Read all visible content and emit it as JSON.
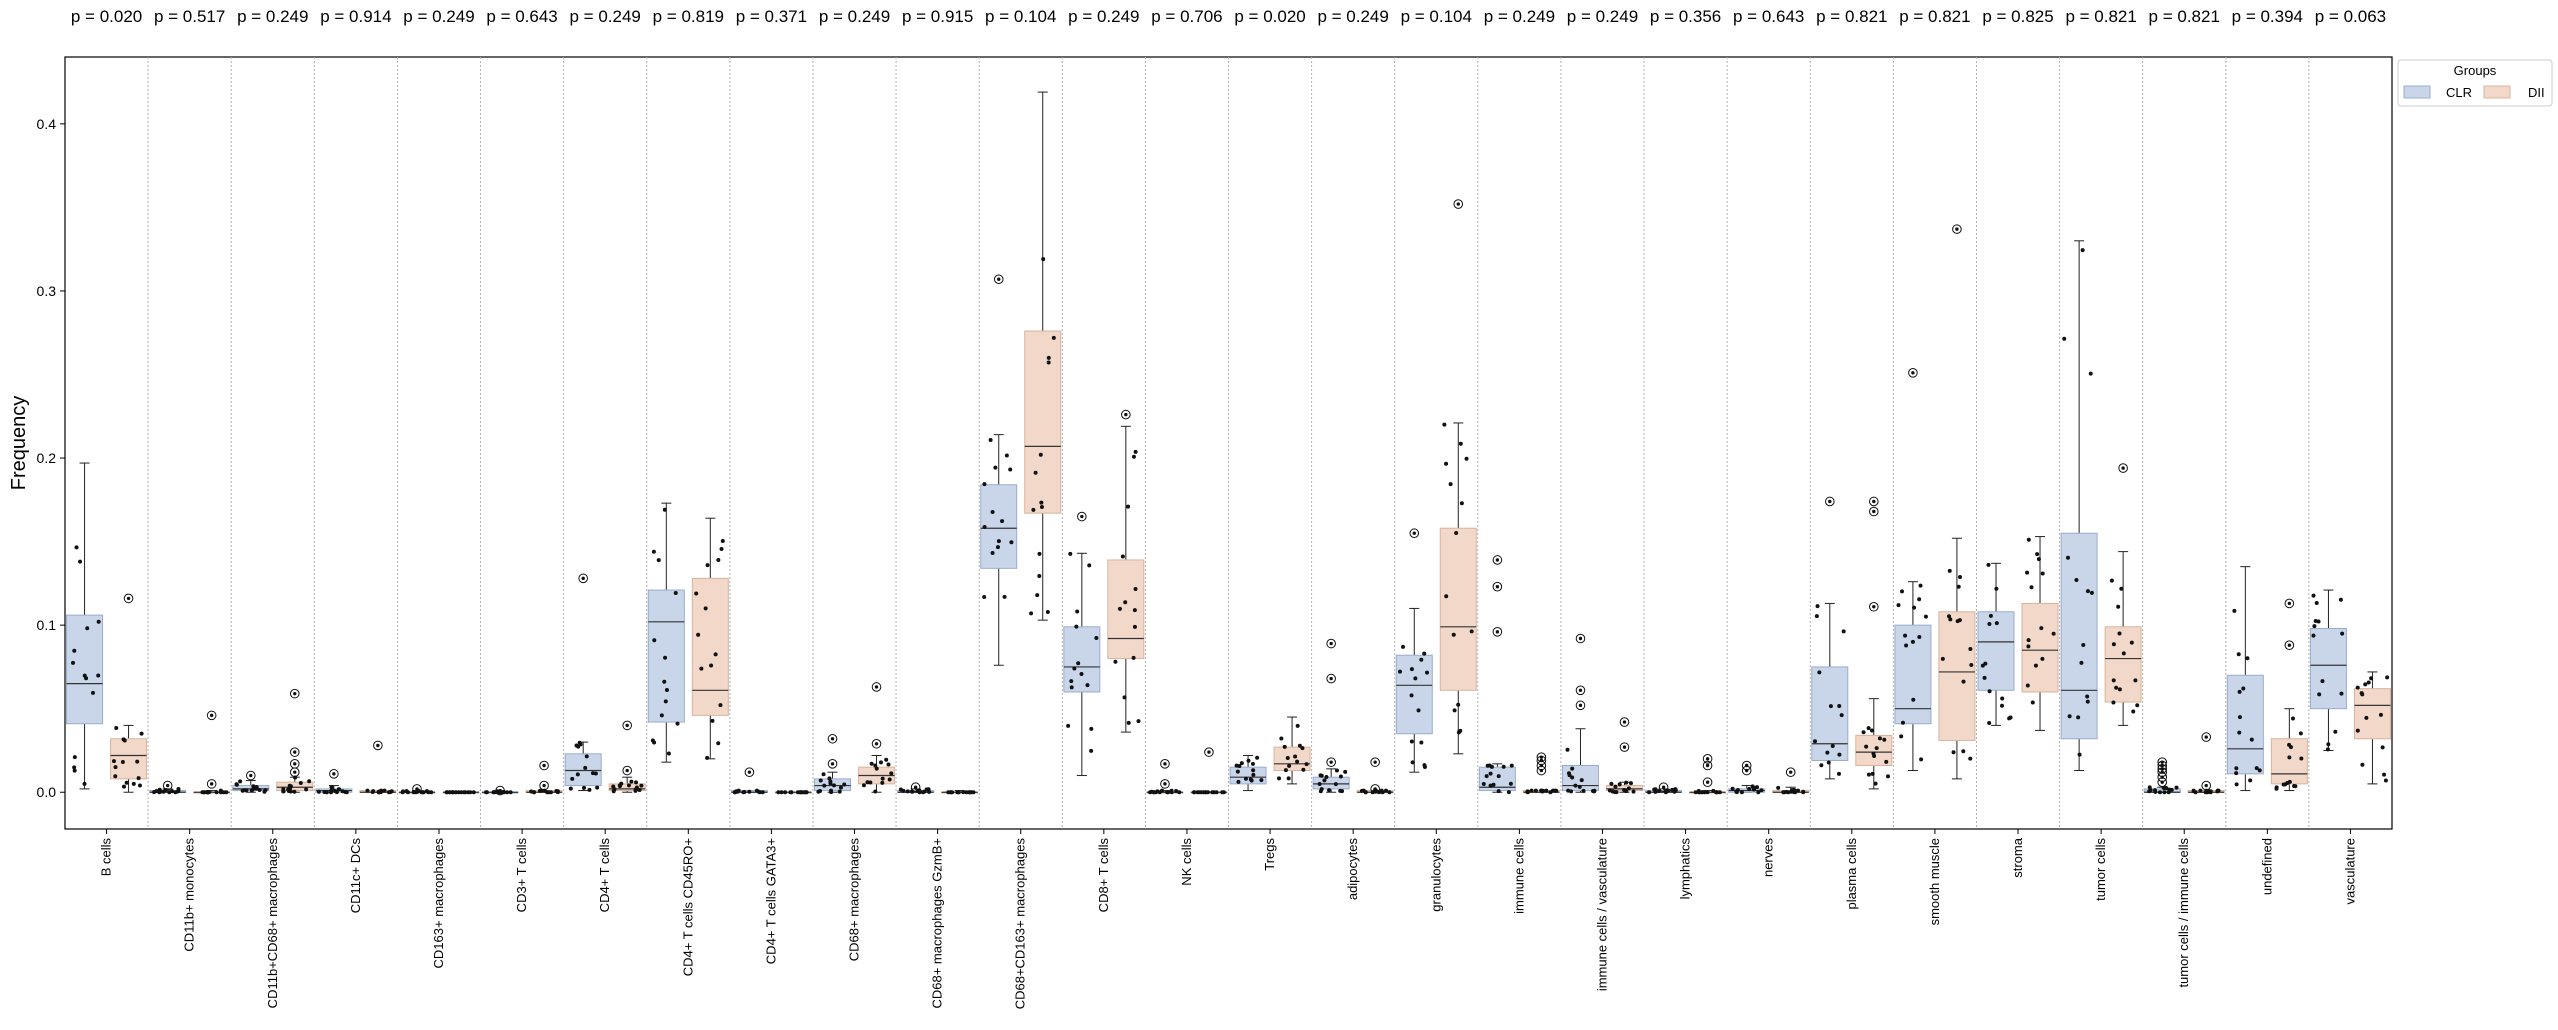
{
  "chart_data": {
    "type": "box",
    "ylabel": "Frequency",
    "ylim": [
      -0.022,
      0.44
    ],
    "yticks": [
      0.0,
      0.1,
      0.2,
      0.3,
      0.4
    ],
    "ytick_labels": [
      "0.0",
      "0.1",
      "0.2",
      "0.3",
      "0.4"
    ],
    "grid": "vertical dotted separators between categories",
    "legend": {
      "title": "Groups",
      "position": "top-right",
      "entries": [
        "CLR",
        "DII"
      ]
    },
    "colors": {
      "CLR": "#c9d6ea",
      "DII": "#f2d8c9",
      "CLR_edge": "#9aaccd",
      "DII_edge": "#d9b39e"
    },
    "categories": [
      "B cells",
      "CD11b+ monocytes",
      "CD11b+CD68+ macrophages",
      "CD11c+ DCs",
      "CD163+ macrophages",
      "CD3+ T cells",
      "CD4+ T cells",
      "CD4+ T cells CD45RO+",
      "CD4+ T cells GATA3+",
      "CD68+ macrophages",
      "CD68+ macrophages GzmB+",
      "CD68+CD163+ macrophages",
      "CD8+ T cells",
      "NK cells",
      "Tregs",
      "adipocytes",
      "granulocytes",
      "immune cells",
      "immune cells / vasculature",
      "lymphatics",
      "nerves",
      "plasma cells",
      "smooth muscle",
      "stroma",
      "tumor cells",
      "tumor cells / immune cells",
      "undefined",
      "vasculature"
    ],
    "p_values": [
      "p = 0.020",
      "p = 0.517",
      "p = 0.249",
      "p = 0.914",
      "p = 0.249",
      "p = 0.643",
      "p = 0.249",
      "p = 0.819",
      "p = 0.371",
      "p = 0.249",
      "p = 0.915",
      "p = 0.104",
      "p = 0.249",
      "p = 0.706",
      "p = 0.020",
      "p = 0.249",
      "p = 0.104",
      "p = 0.249",
      "p = 0.249",
      "p = 0.356",
      "p = 0.643",
      "p = 0.821",
      "p = 0.821",
      "p = 0.825",
      "p = 0.821",
      "p = 0.821",
      "p = 0.394",
      "p = 0.063"
    ],
    "series": [
      {
        "name": "CLR",
        "boxes": [
          {
            "q1": 0.041,
            "med": 0.065,
            "q3": 0.106,
            "wlo": 0.002,
            "whi": 0.197,
            "out": []
          },
          {
            "q1": 0.0,
            "med": 0.0,
            "q3": 0.001,
            "wlo": 0.0,
            "whi": 0.002,
            "out": [
              0.004
            ]
          },
          {
            "q1": 0.001,
            "med": 0.002,
            "q3": 0.004,
            "wlo": 0.0,
            "whi": 0.007,
            "out": [
              0.01
            ]
          },
          {
            "q1": 0.0,
            "med": 0.001,
            "q3": 0.002,
            "wlo": 0.0,
            "whi": 0.004,
            "out": [
              0.011
            ]
          },
          {
            "q1": 0.0,
            "med": 0.0,
            "q3": 0.0,
            "wlo": 0.0,
            "whi": 0.001,
            "out": [
              0.002
            ]
          },
          {
            "q1": 0.0,
            "med": 0.0,
            "q3": 0.0,
            "wlo": 0.0,
            "whi": 0.001,
            "out": [
              0.001
            ]
          },
          {
            "q1": 0.004,
            "med": 0.013,
            "q3": 0.023,
            "wlo": 0.001,
            "whi": 0.03,
            "out": [
              0.128
            ]
          },
          {
            "q1": 0.042,
            "med": 0.102,
            "q3": 0.121,
            "wlo": 0.018,
            "whi": 0.173,
            "out": []
          },
          {
            "q1": 0.0,
            "med": 0.0,
            "q3": 0.001,
            "wlo": 0.0,
            "whi": 0.001,
            "out": [
              0.012
            ]
          },
          {
            "q1": 0.001,
            "med": 0.004,
            "q3": 0.008,
            "wlo": 0.0,
            "whi": 0.012,
            "out": [
              0.017,
              0.032
            ]
          },
          {
            "q1": 0.0,
            "med": 0.0,
            "q3": 0.001,
            "wlo": 0.0,
            "whi": 0.002,
            "out": [
              0.003
            ]
          },
          {
            "q1": 0.134,
            "med": 0.158,
            "q3": 0.184,
            "wlo": 0.076,
            "whi": 0.214,
            "out": [
              0.307
            ]
          },
          {
            "q1": 0.06,
            "med": 0.075,
            "q3": 0.099,
            "wlo": 0.01,
            "whi": 0.143,
            "out": [
              0.165
            ]
          },
          {
            "q1": 0.0,
            "med": 0.0,
            "q3": 0.0,
            "wlo": 0.0,
            "whi": 0.001,
            "out": [
              0.005,
              0.017
            ]
          },
          {
            "q1": 0.005,
            "med": 0.009,
            "q3": 0.015,
            "wlo": 0.001,
            "whi": 0.022,
            "out": []
          },
          {
            "q1": 0.002,
            "med": 0.005,
            "q3": 0.009,
            "wlo": 0.0,
            "whi": 0.014,
            "out": [
              0.018,
              0.068,
              0.089
            ]
          },
          {
            "q1": 0.035,
            "med": 0.064,
            "q3": 0.082,
            "wlo": 0.012,
            "whi": 0.11,
            "out": [
              0.155
            ]
          },
          {
            "q1": 0.001,
            "med": 0.003,
            "q3": 0.015,
            "wlo": 0.0,
            "whi": 0.017,
            "out": [
              0.096,
              0.123,
              0.139
            ]
          },
          {
            "q1": 0.001,
            "med": 0.004,
            "q3": 0.016,
            "wlo": 0.0,
            "whi": 0.038,
            "out": [
              0.052,
              0.061,
              0.092
            ]
          },
          {
            "q1": 0.0,
            "med": 0.0,
            "q3": 0.001,
            "wlo": 0.0,
            "whi": 0.002,
            "out": [
              0.003
            ]
          },
          {
            "q1": 0.0,
            "med": 0.001,
            "q3": 0.002,
            "wlo": 0.0,
            "whi": 0.004,
            "out": [
              0.013,
              0.016
            ]
          },
          {
            "q1": 0.019,
            "med": 0.029,
            "q3": 0.075,
            "wlo": 0.008,
            "whi": 0.113,
            "out": [
              0.174
            ]
          },
          {
            "q1": 0.041,
            "med": 0.05,
            "q3": 0.1,
            "wlo": 0.013,
            "whi": 0.126,
            "out": [
              0.251
            ]
          },
          {
            "q1": 0.061,
            "med": 0.09,
            "q3": 0.108,
            "wlo": 0.04,
            "whi": 0.137,
            "out": []
          },
          {
            "q1": 0.032,
            "med": 0.061,
            "q3": 0.155,
            "wlo": 0.013,
            "whi": 0.33,
            "out": []
          },
          {
            "q1": 0.0,
            "med": 0.0,
            "q3": 0.002,
            "wlo": 0.0,
            "whi": 0.003,
            "out": [
              0.006,
              0.009,
              0.012,
              0.014,
              0.016,
              0.018
            ]
          },
          {
            "q1": 0.011,
            "med": 0.026,
            "q3": 0.07,
            "wlo": 0.001,
            "whi": 0.135,
            "out": []
          },
          {
            "q1": 0.05,
            "med": 0.076,
            "q3": 0.098,
            "wlo": 0.025,
            "whi": 0.121,
            "out": []
          }
        ]
      },
      {
        "name": "DII",
        "boxes": [
          {
            "q1": 0.008,
            "med": 0.022,
            "q3": 0.032,
            "wlo": 0.0,
            "whi": 0.04,
            "out": [
              0.116
            ]
          },
          {
            "q1": 0.0,
            "med": 0.0,
            "q3": 0.0,
            "wlo": 0.0,
            "whi": 0.001,
            "out": [
              0.005,
              0.046
            ]
          },
          {
            "q1": 0.001,
            "med": 0.003,
            "q3": 0.006,
            "wlo": 0.0,
            "whi": 0.009,
            "out": [
              0.012,
              0.017,
              0.024,
              0.059
            ]
          },
          {
            "q1": 0.0,
            "med": 0.0,
            "q3": 0.001,
            "wlo": 0.0,
            "whi": 0.001,
            "out": [
              0.028
            ]
          },
          {
            "q1": 0.0,
            "med": 0.0,
            "q3": 0.0,
            "wlo": 0.0,
            "whi": 0.0,
            "out": []
          },
          {
            "q1": 0.0,
            "med": 0.0,
            "q3": 0.001,
            "wlo": 0.0,
            "whi": 0.001,
            "out": [
              0.004,
              0.016
            ]
          },
          {
            "q1": 0.001,
            "med": 0.002,
            "q3": 0.005,
            "wlo": 0.0,
            "whi": 0.009,
            "out": [
              0.013,
              0.04
            ]
          },
          {
            "q1": 0.046,
            "med": 0.061,
            "q3": 0.128,
            "wlo": 0.02,
            "whi": 0.164,
            "out": []
          },
          {
            "q1": 0.0,
            "med": 0.0,
            "q3": 0.0,
            "wlo": 0.0,
            "whi": 0.0,
            "out": []
          },
          {
            "q1": 0.005,
            "med": 0.01,
            "q3": 0.015,
            "wlo": 0.0,
            "whi": 0.022,
            "out": [
              0.029,
              0.063
            ]
          },
          {
            "q1": 0.0,
            "med": 0.0,
            "q3": 0.0,
            "wlo": 0.0,
            "whi": 0.001,
            "out": []
          },
          {
            "q1": 0.167,
            "med": 0.207,
            "q3": 0.276,
            "wlo": 0.103,
            "whi": 0.419,
            "out": []
          },
          {
            "q1": 0.08,
            "med": 0.092,
            "q3": 0.139,
            "wlo": 0.036,
            "whi": 0.219,
            "out": [
              0.226
            ]
          },
          {
            "q1": 0.0,
            "med": 0.0,
            "q3": 0.0,
            "wlo": 0.0,
            "whi": 0.0,
            "out": [
              0.024
            ]
          },
          {
            "q1": 0.013,
            "med": 0.017,
            "q3": 0.027,
            "wlo": 0.005,
            "whi": 0.045,
            "out": []
          },
          {
            "q1": 0.0,
            "med": 0.0,
            "q3": 0.001,
            "wlo": 0.0,
            "whi": 0.001,
            "out": [
              0.002,
              0.018
            ]
          },
          {
            "q1": 0.061,
            "med": 0.099,
            "q3": 0.158,
            "wlo": 0.023,
            "whi": 0.221,
            "out": [
              0.352
            ]
          },
          {
            "q1": 0.0,
            "med": 0.0,
            "q3": 0.001,
            "wlo": 0.0,
            "whi": 0.001,
            "out": [
              0.013,
              0.016,
              0.019,
              0.021
            ]
          },
          {
            "q1": 0.001,
            "med": 0.002,
            "q3": 0.004,
            "wlo": 0.0,
            "whi": 0.006,
            "out": [
              0.027,
              0.042
            ]
          },
          {
            "q1": 0.0,
            "med": 0.0,
            "q3": 0.0,
            "wlo": 0.0,
            "whi": 0.001,
            "out": [
              0.006,
              0.016,
              0.02
            ]
          },
          {
            "q1": 0.0,
            "med": 0.0,
            "q3": 0.001,
            "wlo": 0.0,
            "whi": 0.003,
            "out": [
              0.012
            ]
          },
          {
            "q1": 0.016,
            "med": 0.024,
            "q3": 0.034,
            "wlo": 0.002,
            "whi": 0.056,
            "out": [
              0.111,
              0.168,
              0.174
            ]
          },
          {
            "q1": 0.031,
            "med": 0.072,
            "q3": 0.108,
            "wlo": 0.008,
            "whi": 0.152,
            "out": [
              0.337
            ]
          },
          {
            "q1": 0.06,
            "med": 0.085,
            "q3": 0.113,
            "wlo": 0.037,
            "whi": 0.153,
            "out": []
          },
          {
            "q1": 0.054,
            "med": 0.08,
            "q3": 0.099,
            "wlo": 0.04,
            "whi": 0.144,
            "out": [
              0.194
            ]
          },
          {
            "q1": 0.0,
            "med": 0.0,
            "q3": 0.001,
            "wlo": 0.0,
            "whi": 0.001,
            "out": [
              0.004,
              0.033
            ]
          },
          {
            "q1": 0.005,
            "med": 0.011,
            "q3": 0.032,
            "wlo": 0.001,
            "whi": 0.05,
            "out": [
              0.088,
              0.113
            ]
          },
          {
            "q1": 0.032,
            "med": 0.052,
            "q3": 0.062,
            "wlo": 0.005,
            "whi": 0.072,
            "out": []
          }
        ]
      }
    ]
  }
}
